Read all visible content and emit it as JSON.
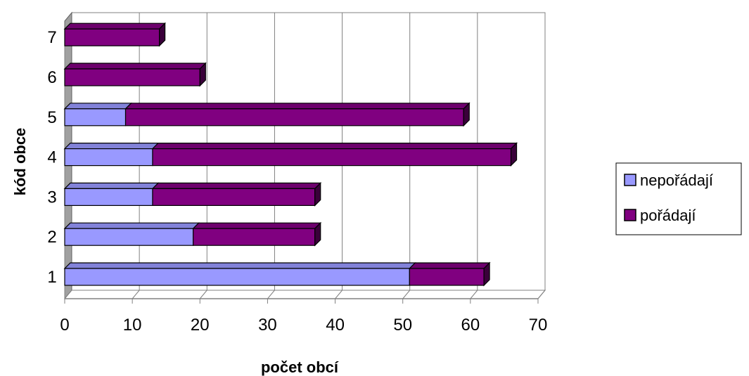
{
  "chart_data": {
    "type": "bar",
    "orientation": "horizontal",
    "stacked": true,
    "three_d": true,
    "title": "",
    "xlabel": "počet obcí",
    "ylabel": "kód obce",
    "categories": [
      "1",
      "2",
      "3",
      "4",
      "5",
      "6",
      "7"
    ],
    "series": [
      {
        "name": "nepořádají",
        "color": "#9999ff",
        "values": [
          51,
          19,
          13,
          13,
          9,
          0,
          0
        ]
      },
      {
        "name": "pořádají",
        "color": "#800080",
        "values": [
          11,
          18,
          24,
          53,
          50,
          20,
          14
        ]
      }
    ],
    "xlim": [
      0,
      70
    ],
    "xticks": [
      "0",
      "10",
      "20",
      "30",
      "40",
      "50",
      "60",
      "70"
    ],
    "grid": true,
    "legend_position": "right"
  }
}
